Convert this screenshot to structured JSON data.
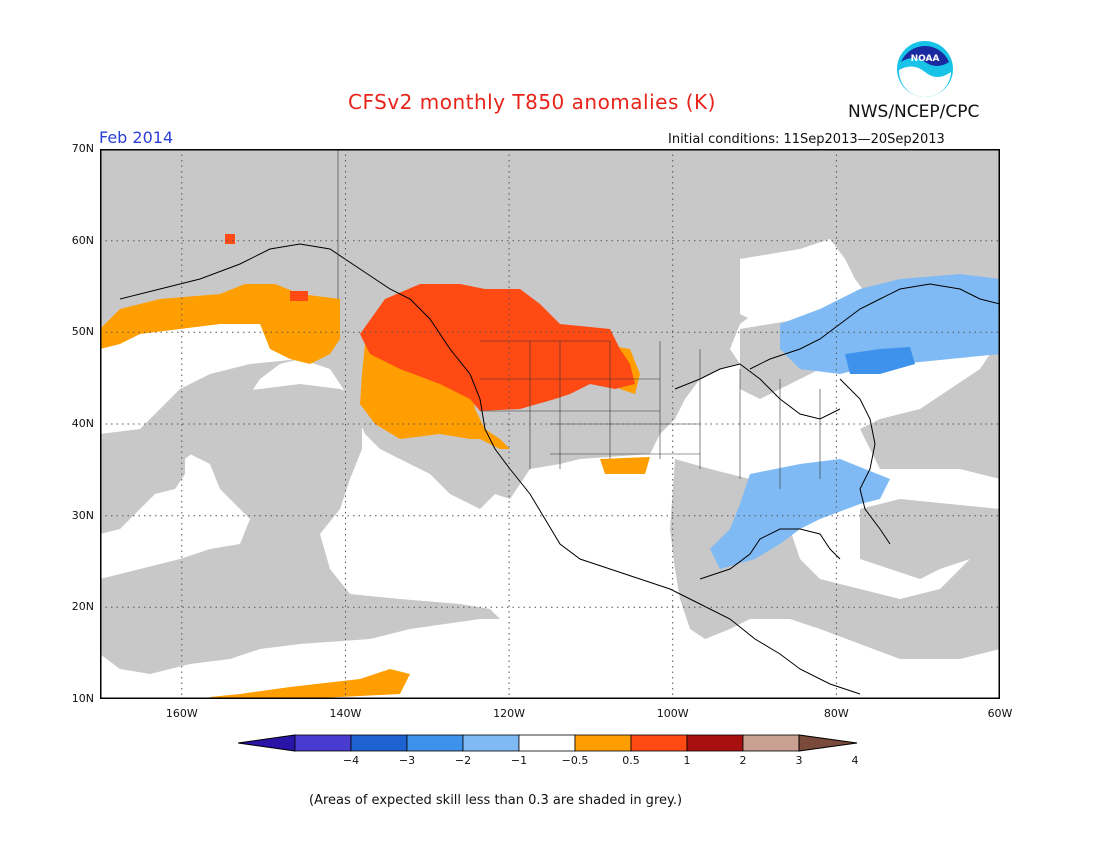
{
  "title": "CFSv2 monthly T850 anomalies (K)",
  "valid_month": "Feb 2014",
  "initial_conditions": "Initial conditions: 11Sep2013—20Sep2013",
  "agency": "NWS/NCEP/CPC",
  "logo_text": "NOAA",
  "note": "(Areas of expected skill less than 0.3 are shaded in grey.)",
  "lat_labels": [
    "70N",
    "60N",
    "50N",
    "40N",
    "30N",
    "20N",
    "10N"
  ],
  "lon_labels": [
    "160W",
    "140W",
    "120W",
    "100W",
    "80W",
    "60W"
  ],
  "colorbar": {
    "labels": [
      "−4",
      "−3",
      "−2",
      "−1",
      "−0.5",
      "0.5",
      "1",
      "2",
      "3",
      "4"
    ],
    "colors": [
      "#2a14a8",
      "#4a3bd0",
      "#1e62d0",
      "#3f92ec",
      "#7fbaf5",
      "#ffffff",
      "#ff9e00",
      "#ff4a14",
      "#a80f0f",
      "#c9a192",
      "#7a4a3a"
    ]
  },
  "colors": {
    "skill_grey": "#c8c8c8",
    "pos_0_5_to_1": "#ff9e00",
    "pos_1_to_2": "#ff4a14",
    "neg_0_5_to_1": "#7fbaf5",
    "neg_1_to_2": "#3f92ec",
    "title_red": "#e8231a",
    "month_blue": "#2b3fd6"
  },
  "map_extent": {
    "lon": [
      -170,
      -60
    ],
    "lat": [
      10,
      70
    ]
  }
}
